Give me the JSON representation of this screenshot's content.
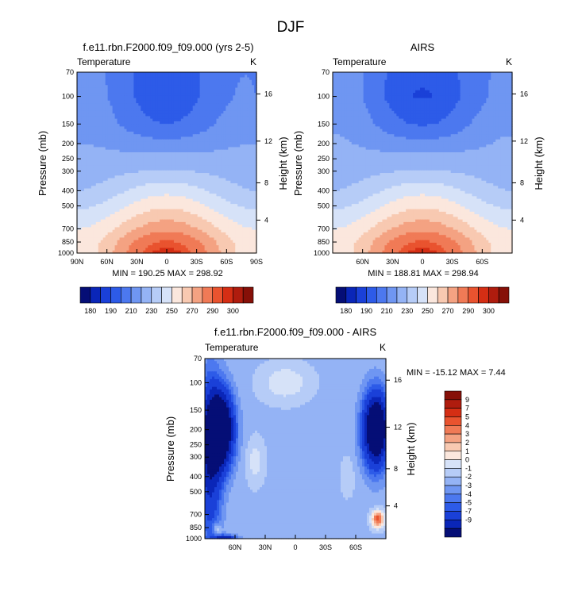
{
  "figure": {
    "title": "DJF"
  },
  "chart_data": [
    {
      "type": "heatmap",
      "title": "f.e11.rbn.F2000.f09_f09.000 (yrs 2-5)",
      "left_label": "Temperature",
      "units": "K",
      "ylabel": "Pressure (mb)",
      "ylabel_right": "Height (km)",
      "x_ticks": [
        "90N",
        "60N",
        "30N",
        "0",
        "30S",
        "60S",
        "90S"
      ],
      "x_tick_values": [
        90,
        60,
        30,
        0,
        -30,
        -60,
        -90
      ],
      "y_ticks": [
        "70",
        "100",
        "150",
        "200",
        "250",
        "300",
        "400",
        "500",
        "700",
        "850",
        "1000"
      ],
      "y_tick_values": [
        70,
        100,
        150,
        200,
        250,
        300,
        400,
        500,
        700,
        850,
        1000
      ],
      "height_ticks": [
        "16",
        "12",
        "8",
        "4"
      ],
      "height_tick_values": [
        16,
        12,
        8,
        4
      ],
      "xlim": [
        90,
        -90
      ],
      "ylim": [
        1000,
        70
      ],
      "stats": "MIN = 190.25   MAX = 298.92",
      "min": 190.25,
      "max": 298.92,
      "colorbar": {
        "levels": [
          180,
          185,
          190,
          200,
          210,
          220,
          230,
          240,
          250,
          260,
          270,
          280,
          290,
          295,
          300
        ],
        "labels": [
          "180",
          "190",
          "210",
          "230",
          "250",
          "270",
          "290",
          "300"
        ],
        "colors": [
          "#050e76",
          "#0a26b8",
          "#1a40d8",
          "#2d5be8",
          "#4c78ef",
          "#6f96f2",
          "#94b3f5",
          "#b6ccf7",
          "#d6e2f8",
          "#fbe7dd",
          "#f8c9b1",
          "#f4a282",
          "#f07a56",
          "#e9532f",
          "#d52e14",
          "#af1c0e",
          "#861008"
        ]
      },
      "profile": {
        "equator": {
          "70": 193,
          "100": 193,
          "150": 200,
          "200": 213,
          "250": 224,
          "300": 231,
          "400": 247,
          "500": 258,
          "700": 277,
          "850": 291,
          "1000": 298
        },
        "pole": {
          "70": 215,
          "100": 216,
          "150": 218,
          "200": 220,
          "250": 223,
          "300": 225,
          "400": 230,
          "500": 238,
          "700": 250,
          "850": 255,
          "1000": 255
        }
      }
    },
    {
      "type": "heatmap",
      "title": "AIRS",
      "left_label": "Temperature",
      "units": "K",
      "ylabel": "Pressure (mb)",
      "ylabel_right": "Height (km)",
      "x_ticks": [
        "60N",
        "30N",
        "0",
        "30S",
        "60S"
      ],
      "x_tick_values": [
        60,
        30,
        0,
        -30,
        -60
      ],
      "y_ticks": [
        "70",
        "100",
        "150",
        "200",
        "250",
        "300",
        "400",
        "500",
        "700",
        "850",
        "1000"
      ],
      "y_tick_values": [
        70,
        100,
        150,
        200,
        250,
        300,
        400,
        500,
        700,
        850,
        1000
      ],
      "height_ticks": [
        "16",
        "12",
        "8",
        "4"
      ],
      "height_tick_values": [
        16,
        12,
        8,
        4
      ],
      "xlim": [
        90,
        -90
      ],
      "ylim": [
        1000,
        70
      ],
      "stats": "MIN = 188.81   MAX = 298.94",
      "min": 188.81,
      "max": 298.94,
      "colorbar": {
        "levels": [
          180,
          185,
          190,
          200,
          210,
          220,
          230,
          240,
          250,
          260,
          270,
          280,
          290,
          295,
          300
        ],
        "labels": [
          "180",
          "190",
          "210",
          "230",
          "250",
          "270",
          "290",
          "300"
        ],
        "colors": [
          "#050e76",
          "#0a26b8",
          "#1a40d8",
          "#2d5be8",
          "#4c78ef",
          "#6f96f2",
          "#94b3f5",
          "#b6ccf7",
          "#d6e2f8",
          "#fbe7dd",
          "#f8c9b1",
          "#f4a282",
          "#f07a56",
          "#e9532f",
          "#d52e14",
          "#af1c0e",
          "#861008"
        ]
      },
      "profile": {
        "equator": {
          "70": 192,
          "100": 189,
          "150": 199,
          "200": 213,
          "250": 224,
          "300": 231,
          "400": 247,
          "500": 258,
          "700": 277,
          "850": 291,
          "1000": 298
        },
        "pole": {
          "70": 216,
          "100": 217,
          "150": 219,
          "200": 221,
          "250": 223,
          "300": 225,
          "400": 230,
          "500": 238,
          "700": 250,
          "850": 255,
          "1000": 255
        }
      }
    },
    {
      "type": "heatmap",
      "title": "f.e11.rbn.F2000.f09_f09.000 - AIRS",
      "left_label": "Temperature",
      "units": "K",
      "ylabel": "Pressure (mb)",
      "ylabel_right": "Height (km)",
      "x_ticks": [
        "60N",
        "30N",
        "0",
        "30S",
        "60S"
      ],
      "x_tick_values": [
        60,
        30,
        0,
        -30,
        -60
      ],
      "y_ticks": [
        "70",
        "100",
        "150",
        "200",
        "250",
        "300",
        "400",
        "500",
        "700",
        "850",
        "1000"
      ],
      "y_tick_values": [
        70,
        100,
        150,
        200,
        250,
        300,
        400,
        500,
        700,
        850,
        1000
      ],
      "height_ticks": [
        "16",
        "12",
        "8",
        "4"
      ],
      "height_tick_values": [
        16,
        12,
        8,
        4
      ],
      "xlim": [
        90,
        -90
      ],
      "ylim": [
        1000,
        70
      ],
      "stats": "MIN = -15.12  MAX =   7.44",
      "min": -15.12,
      "max": 7.44,
      "colorbar": {
        "levels": [
          -9,
          -7,
          -5,
          -4,
          -3,
          -2,
          -1,
          0,
          1,
          2,
          3,
          4,
          5,
          7,
          9
        ],
        "labels": [
          "9",
          "7",
          "5",
          "4",
          "3",
          "2",
          "1",
          "0",
          "-1",
          "-2",
          "-3",
          "-4",
          "-5",
          "-7",
          "-9"
        ],
        "colors": [
          "#050e76",
          "#0a26b8",
          "#1a40d8",
          "#2d5be8",
          "#4c78ef",
          "#6f96f2",
          "#94b3f5",
          "#b6ccf7",
          "#d6e2f8",
          "#fbe7dd",
          "#f8c9b1",
          "#f4a282",
          "#f07a56",
          "#e9532f",
          "#d52e14",
          "#af1c0e",
          "#861008"
        ]
      }
    }
  ]
}
